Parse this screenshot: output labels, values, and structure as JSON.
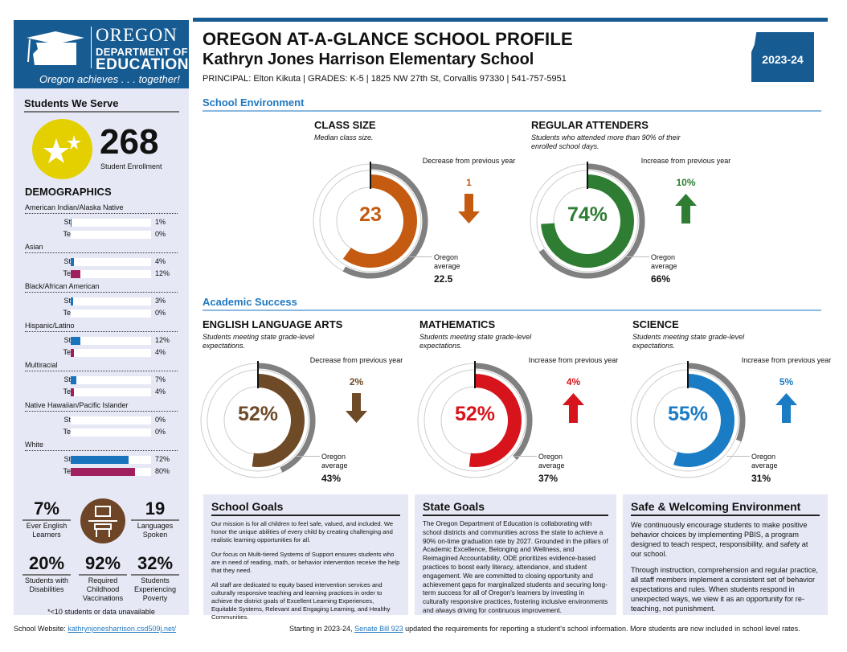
{
  "logo": {
    "line1": "OREGON",
    "line2": "DEPARTMENT OF",
    "line3": "EDUCATION",
    "tagline": "Oregon achieves . . . together!"
  },
  "header": {
    "title": "OREGON AT-A-GLANCE SCHOOL PROFILE",
    "school": "Kathryn Jones Harrison Elementary School",
    "info": "PRINCIPAL: Elton Kikuta | GRADES: K-5 | 1825 NW 27th St, Corvallis 97330 | 541-757-5951",
    "year": "2023-24"
  },
  "sidebar": {
    "title": "Students We Serve",
    "enrollment": "268",
    "enrollment_label": "Student Enrollment",
    "demographics_title": "DEMOGRAPHICS",
    "colors": {
      "students": "#1a73bd",
      "teachers": "#a0205f"
    },
    "groups": [
      {
        "name": "American Indian/Alaska Native",
        "students_label": "Students",
        "students": 1,
        "students_text": "1%",
        "teachers_label": "Teachers",
        "teachers": 0,
        "teachers_text": "0%"
      },
      {
        "name": "Asian",
        "students_label": "Students",
        "students": 4,
        "students_text": "4%",
        "teachers_label": "Teachers",
        "teachers": 12,
        "teachers_text": "12%"
      },
      {
        "name": "Black/African American",
        "students_label": "Students",
        "students": 3,
        "students_text": "3%",
        "teachers_label": "Teachers",
        "teachers": 0,
        "teachers_text": "0%"
      },
      {
        "name": "Hispanic/Latino",
        "students_label": "Students",
        "students": 12,
        "students_text": "12%",
        "teachers_label": "Teachers",
        "teachers": 4,
        "teachers_text": "4%"
      },
      {
        "name": "Multiracial",
        "students_label": "Students",
        "students": 7,
        "students_text": "7%",
        "teachers_label": "Teachers",
        "teachers": 4,
        "teachers_text": "4%"
      },
      {
        "name": "Native Hawaiian/Pacific Islander",
        "students_label": "Students",
        "students": 0,
        "students_text": "0%",
        "teachers_label": "Teachers",
        "teachers": 0,
        "teachers_text": "0%"
      },
      {
        "name": "White",
        "students_label": "Students",
        "students": 72,
        "students_text": "72%",
        "teachers_label": "Teachers",
        "teachers": 80,
        "teachers_text": "80%"
      }
    ],
    "stats": [
      {
        "value": "7%",
        "label": "Ever English Learners"
      },
      {
        "value": "19",
        "label": "Languages Spoken"
      },
      {
        "value": "20%",
        "label": "Students with Disabilities"
      },
      {
        "value": "92%",
        "label": "Required Childhood Vaccinations"
      },
      {
        "value": "32%",
        "label": "Students Experiencing Poverty"
      }
    ],
    "footnote": "*<10 students or data unavailable"
  },
  "sections": {
    "environment": "School Environment",
    "academic": "Academic Success"
  },
  "gauges": [
    {
      "title": "CLASS SIZE",
      "subtitle": "Median class size.",
      "value": "23",
      "fraction": 0.6,
      "state_fraction": 0.58,
      "color": "#c55a11",
      "change_label": "Decrease from previous year",
      "change": "1",
      "direction": "down",
      "avg_label": "Oregon average",
      "avg": "22.5"
    },
    {
      "title": "REGULAR ATTENDERS",
      "subtitle": "Students who attended more than 90% of their enrolled school days.",
      "value": "74%",
      "fraction": 0.74,
      "state_fraction": 0.66,
      "color": "#2e7d32",
      "change_label": "Increase from previous year",
      "change": "10%",
      "direction": "up",
      "avg_label": "Oregon average",
      "avg": "66%"
    },
    {
      "title": "ENGLISH LANGUAGE ARTS",
      "subtitle": "Students meeting state grade-level expectations.",
      "value": "52%",
      "fraction": 0.52,
      "state_fraction": 0.43,
      "color": "#6f4a27",
      "change_label": "Decrease from previous year",
      "change": "2%",
      "direction": "down",
      "avg_label": "Oregon average",
      "avg": "43%"
    },
    {
      "title": "MATHEMATICS",
      "subtitle": "Students meeting state grade-level expectations.",
      "value": "52%",
      "fraction": 0.52,
      "state_fraction": 0.37,
      "color": "#d7141c",
      "change_label": "Increase from previous year",
      "change": "4%",
      "direction": "up",
      "avg_label": "Oregon average",
      "avg": "37%"
    },
    {
      "title": "SCIENCE",
      "subtitle": "Students meeting state grade-level expectations.",
      "value": "55%",
      "fraction": 0.55,
      "state_fraction": 0.31,
      "color": "#1a7cc4",
      "change_label": "Increase from previous year",
      "change": "5%",
      "direction": "up",
      "avg_label": "Oregon average",
      "avg": "31%"
    }
  ],
  "panels": {
    "school_goals": {
      "title": "School Goals",
      "paragraphs": [
        "Our mission is for all children to feel safe, valued, and included. We honor the unique abilities of every child by creating challenging and realistic learning opportunities for all.",
        "Our focus on Multi-tiered Systems of Support ensures students who are in need of reading, math, or behavior intervention receive the help that they need.",
        "All staff are dedicated to equity based intervention services and culturally responsive teaching and learning practices in order to achieve the district goals of Excellent Learning Experiences, Equitable Systems, Relevant and Engaging Learning, and Healthy Communities."
      ]
    },
    "state_goals": {
      "title": "State Goals",
      "paragraphs": [
        "The Oregon Department of Education is collaborating with school districts and communities across the state to achieve a 90% on-time graduation rate by 2027. Grounded in the pillars of Academic Excellence, Belonging and Wellness, and Reimagined Accountability, ODE prioritizes evidence-based practices to boost early literacy, attendance, and student engagement. We are committed to closing opportunity and achievement gaps for marginalized students and securing long-term success for all of Oregon's learners by investing in culturally responsive practices, fostering inclusive environments and always driving for continuous improvement."
      ]
    },
    "safe": {
      "title": "Safe & Welcoming Environment",
      "paragraphs": [
        "We continuously encourage students to make positive behavior choices by implementing PBIS, a program designed to teach respect, responsibility, and safety at our school.",
        "Through instruction, comprehension and regular practice, all staff members implement a consistent set of behavior expectations and rules. When students respond in unexpected ways, we view it as an opportunity for re-teaching, not punishment."
      ]
    }
  },
  "footer": {
    "website_label": "School Website:",
    "website": "kathrynjonesharrison.csd509j.net/",
    "note_pre": "Starting in 2023-24,",
    "note_link": "Senate Bill 923",
    "note_post": "updated the requirements for reporting a student's school information. More students are now included in school level rates."
  }
}
